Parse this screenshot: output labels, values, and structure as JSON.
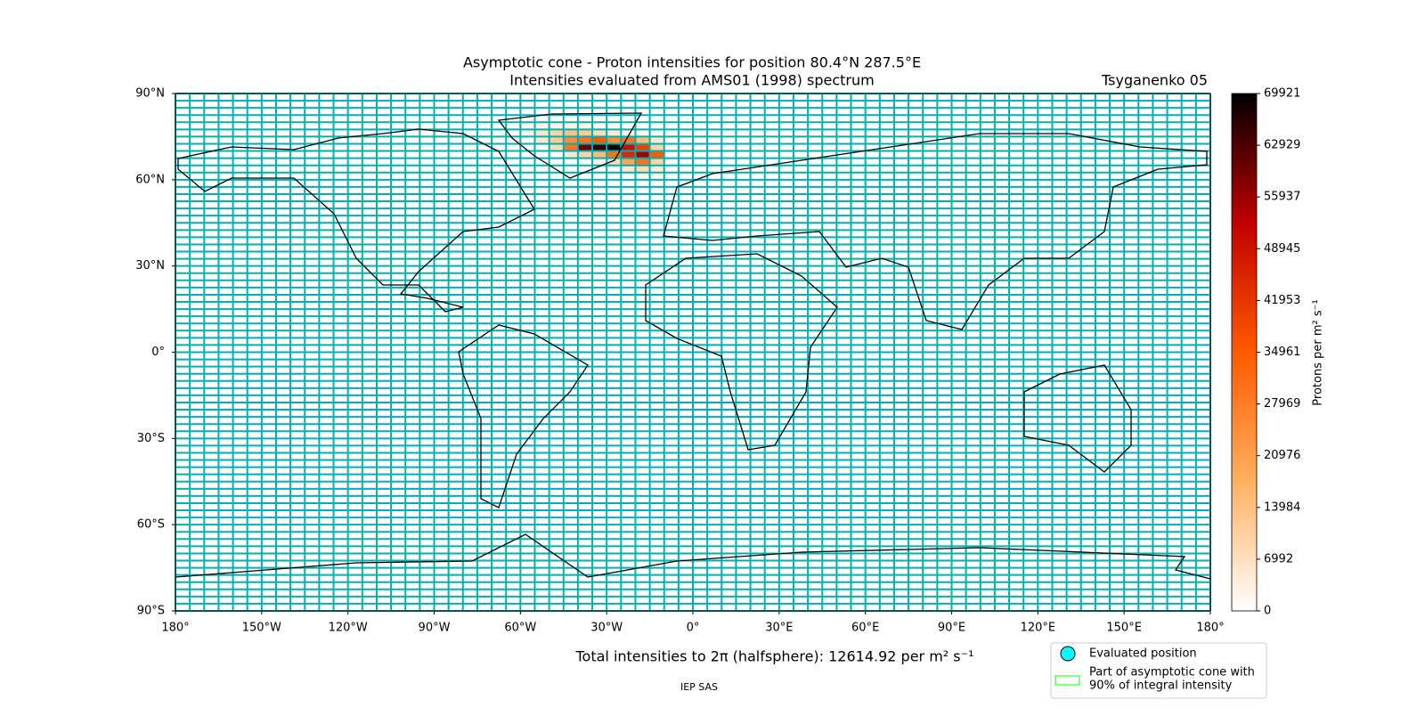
{
  "chart_data": {
    "type": "map",
    "title": "Asymptotic cone - Proton intensities for position 80.4°N 287.5°E",
    "subtitle": "Intensities evaluated from AMS01 (1998) spectrum",
    "model": "Tsyganenko 05",
    "xlim": [
      -180,
      180
    ],
    "ylim": [
      -90,
      90
    ],
    "xticks": [
      {
        "value": -180,
        "label": "180°"
      },
      {
        "value": -150,
        "label": "150°W"
      },
      {
        "value": -120,
        "label": "120°W"
      },
      {
        "value": -90,
        "label": "90°W"
      },
      {
        "value": -60,
        "label": "60°W"
      },
      {
        "value": -30,
        "label": "30°W"
      },
      {
        "value": 0,
        "label": "0°"
      },
      {
        "value": 30,
        "label": "30°E"
      },
      {
        "value": 60,
        "label": "60°E"
      },
      {
        "value": 90,
        "label": "90°E"
      },
      {
        "value": 120,
        "label": "120°E"
      },
      {
        "value": 150,
        "label": "150°E"
      },
      {
        "value": 180,
        "label": "180°"
      }
    ],
    "yticks": [
      {
        "value": 90,
        "label": "90°N"
      },
      {
        "value": 60,
        "label": "60°N"
      },
      {
        "value": 30,
        "label": "30°N"
      },
      {
        "value": 0,
        "label": "0°"
      },
      {
        "value": -30,
        "label": "30°S"
      },
      {
        "value": -60,
        "label": "60°S"
      },
      {
        "value": -90,
        "label": "90°S"
      }
    ],
    "grid_cell_deg": {
      "lon": 5,
      "lat": 2.5
    },
    "grid_color": "#00b0b0",
    "colormap": [
      "#ffffff",
      "#ffb060",
      "#ff5a00",
      "#c00000",
      "#000000"
    ],
    "clim": [
      0,
      69921
    ],
    "cticks": [
      0,
      6992,
      13984,
      20976,
      27969,
      34961,
      41953,
      48945,
      55937,
      62929,
      69921
    ],
    "colorbar_label": "Protons per m² s⁻¹",
    "cells": [
      {
        "lon": -60,
        "lat": 77.5,
        "value": 2000
      },
      {
        "lon": -55,
        "lat": 77.5,
        "value": 2500
      },
      {
        "lon": -50,
        "lat": 77.5,
        "value": 3000
      },
      {
        "lon": -45,
        "lat": 77.5,
        "value": 3000
      },
      {
        "lon": -40,
        "lat": 77.5,
        "value": 2500
      },
      {
        "lon": -35,
        "lat": 77.5,
        "value": 2000
      },
      {
        "lon": -30,
        "lat": 77.5,
        "value": 1500
      },
      {
        "lon": -60,
        "lat": 75,
        "value": 3000
      },
      {
        "lon": -55,
        "lat": 75,
        "value": 6000
      },
      {
        "lon": -50,
        "lat": 75,
        "value": 10000
      },
      {
        "lon": -45,
        "lat": 75,
        "value": 14000
      },
      {
        "lon": -40,
        "lat": 75,
        "value": 12000
      },
      {
        "lon": -35,
        "lat": 75,
        "value": 8000
      },
      {
        "lon": -30,
        "lat": 75,
        "value": 5000
      },
      {
        "lon": -25,
        "lat": 75,
        "value": 3000
      },
      {
        "lon": -20,
        "lat": 75,
        "value": 2000
      },
      {
        "lon": -55,
        "lat": 72.5,
        "value": 5000
      },
      {
        "lon": -50,
        "lat": 72.5,
        "value": 12000
      },
      {
        "lon": -45,
        "lat": 72.5,
        "value": 25000
      },
      {
        "lon": -40,
        "lat": 72.5,
        "value": 30000
      },
      {
        "lon": -35,
        "lat": 72.5,
        "value": 35000
      },
      {
        "lon": -30,
        "lat": 72.5,
        "value": 25000
      },
      {
        "lon": -25,
        "lat": 72.5,
        "value": 30000
      },
      {
        "lon": -20,
        "lat": 72.5,
        "value": 15000
      },
      {
        "lon": -15,
        "lat": 72.5,
        "value": 5000
      },
      {
        "lon": -50,
        "lat": 70,
        "value": 8000
      },
      {
        "lon": -45,
        "lat": 70,
        "value": 30000
      },
      {
        "lon": -40,
        "lat": 70,
        "value": 60000
      },
      {
        "lon": -35,
        "lat": 70,
        "value": 65000
      },
      {
        "lon": -30,
        "lat": 70,
        "value": 69921
      },
      {
        "lon": -25,
        "lat": 70,
        "value": 50000
      },
      {
        "lon": -20,
        "lat": 70,
        "value": 40000
      },
      {
        "lon": -15,
        "lat": 70,
        "value": 10000
      },
      {
        "lon": -45,
        "lat": 67.5,
        "value": 5000
      },
      {
        "lon": -40,
        "lat": 67.5,
        "value": 10000
      },
      {
        "lon": -35,
        "lat": 67.5,
        "value": 15000
      },
      {
        "lon": -30,
        "lat": 67.5,
        "value": 30000
      },
      {
        "lon": -25,
        "lat": 67.5,
        "value": 45000
      },
      {
        "lon": -20,
        "lat": 67.5,
        "value": 55000
      },
      {
        "lon": -15,
        "lat": 67.5,
        "value": 35000
      },
      {
        "lon": -35,
        "lat": 65,
        "value": 3000
      },
      {
        "lon": -30,
        "lat": 65,
        "value": 8000
      },
      {
        "lon": -25,
        "lat": 65,
        "value": 20000
      },
      {
        "lon": -20,
        "lat": 65,
        "value": 30000
      },
      {
        "lon": -15,
        "lat": 65,
        "value": 10000
      },
      {
        "lon": -25,
        "lat": 62.5,
        "value": 5000
      },
      {
        "lon": -20,
        "lat": 62.5,
        "value": 8000
      },
      {
        "lon": -15,
        "lat": 62.5,
        "value": 4000
      },
      {
        "lon": -20,
        "lat": 60,
        "value": 3000
      },
      {
        "lon": -15,
        "lat": 60,
        "value": 2000
      },
      {
        "lon": -15,
        "lat": 57.5,
        "value": 1500
      },
      {
        "lon": -15,
        "lat": 55,
        "value": 1000
      }
    ],
    "total_text": "Total intensities to 2π (halfsphere): 12614.92 per m² s⁻¹",
    "credit": "IEP SAS",
    "legend": {
      "items": [
        {
          "name": "Evaluated position",
          "color": "#00ffff"
        },
        {
          "name": "Part of asymptotic cone with",
          "name2": "90% of integral intensity",
          "color": "#00ff00"
        }
      ]
    }
  }
}
